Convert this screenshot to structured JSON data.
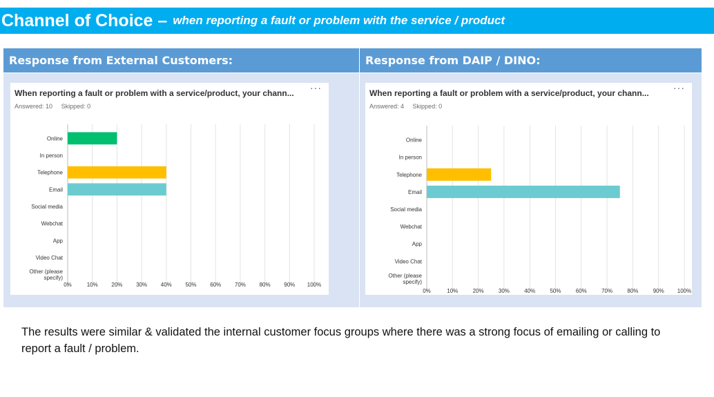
{
  "title": {
    "main": "Channel of Choice –",
    "sub": "when reporting a fault or problem with the service / product"
  },
  "panels": [
    {
      "header": "Response from External Customers:",
      "question": "When reporting a fault or problem with a service/product, your chann...",
      "answered": "Answered: 10",
      "skipped": "Skipped: 0",
      "more": "···"
    },
    {
      "header": "Response from DAIP / DINO:",
      "question": "When reporting a fault or problem with a service/product, your chann...",
      "answered": "Answered: 4",
      "skipped": "Skipped: 0",
      "more": "···"
    }
  ],
  "chart_data": [
    {
      "type": "bar",
      "orientation": "horizontal",
      "categories": [
        "Online",
        "In person",
        "Telephone",
        "Email",
        "Social media",
        "Webchat",
        "App",
        "Video Chat",
        "Other (please specify)"
      ],
      "values": [
        20,
        0,
        40,
        40,
        0,
        0,
        0,
        0,
        0
      ],
      "colors": [
        "#00bf6f",
        "#00bf6f",
        "#ffbf00",
        "#6ccbd0",
        "#00bf6f",
        "#00bf6f",
        "#00bf6f",
        "#00bf6f",
        "#00bf6f"
      ],
      "xticks": [
        "0%",
        "10%",
        "20%",
        "30%",
        "40%",
        "50%",
        "60%",
        "70%",
        "80%",
        "90%",
        "100%"
      ],
      "xlim": [
        0,
        100
      ],
      "grid": true
    },
    {
      "type": "bar",
      "orientation": "horizontal",
      "categories": [
        "Online",
        "In person",
        "Telephone",
        "Email",
        "Social media",
        "Webchat",
        "App",
        "Video Chat",
        "Other (please specify)"
      ],
      "values": [
        0,
        0,
        25,
        75,
        0,
        0,
        0,
        0,
        0
      ],
      "colors": [
        "#00bf6f",
        "#00bf6f",
        "#ffbf00",
        "#6ccbd0",
        "#00bf6f",
        "#00bf6f",
        "#00bf6f",
        "#00bf6f",
        "#00bf6f"
      ],
      "xticks": [
        "0%",
        "10%",
        "20%",
        "30%",
        "40%",
        "50%",
        "60%",
        "70%",
        "80%",
        "90%",
        "100%"
      ],
      "xlim": [
        0,
        100
      ],
      "grid": true
    }
  ],
  "footer": "The results were similar & validated the internal customer focus groups where there was a strong focus of emailing or calling to report a fault / problem."
}
